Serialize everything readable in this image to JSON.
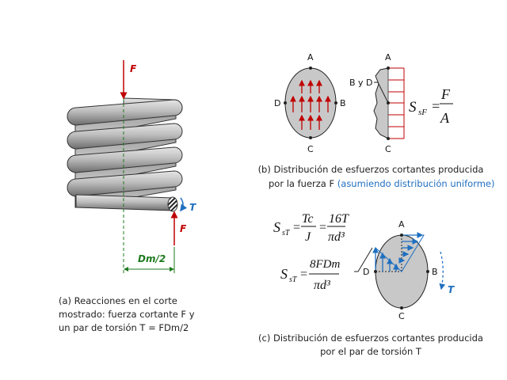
{
  "colors": {
    "force": "#c00000",
    "torque": "#1f6fc0",
    "dimension": "#1e7a1e",
    "section_fill": "#c8c8c8"
  },
  "panel_a": {
    "force_top": "F",
    "force_bottom": "F",
    "torque": "T",
    "dimension": "Dm/2",
    "caption": [
      "(a) Reacciones en el corte",
      "mostrado: fuerza cortante F y",
      "un par de torsión T = FDm/2"
    ]
  },
  "panel_b": {
    "points": {
      "a": "A",
      "b": "B",
      "c": "C",
      "d": "D"
    },
    "profile_top": "A",
    "profile_bottom": "C",
    "profile_label": "B y D",
    "formula": {
      "lhs": "S",
      "sub": "sF",
      "num": "F",
      "den": "A"
    },
    "caption": [
      "(b) Distribución de esfuerzos cortantes producida",
      "por la fuerza F",
      "(asumiendo distribución uniforme)"
    ]
  },
  "panel_c": {
    "points": {
      "a": "A",
      "b": "B",
      "c": "C",
      "d": "D"
    },
    "torque": "T",
    "formula1": {
      "lhs": "S",
      "sub": "sT",
      "num1": "Tc",
      "den1": "J",
      "num2": "16T",
      "den2": "πd³"
    },
    "formula2": {
      "lhs": "S",
      "sub": "sT",
      "num": "8FDm",
      "den": "πd³"
    },
    "caption": [
      "(c) Distribución de esfuerzos cortantes producida",
      "por el par de torsión T"
    ]
  }
}
